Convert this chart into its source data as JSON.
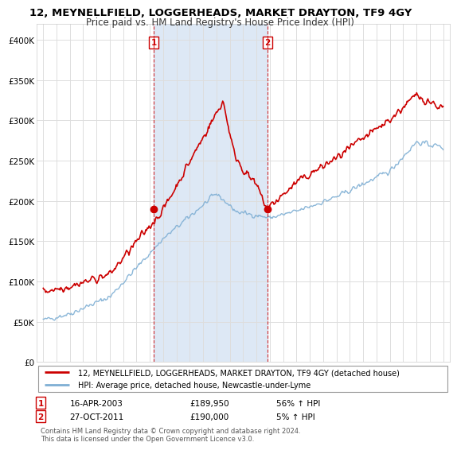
{
  "title": "12, MEYNELLFIELD, LOGGERHEADS, MARKET DRAYTON, TF9 4GY",
  "subtitle": "Price paid vs. HM Land Registry's House Price Index (HPI)",
  "ylim": [
    0,
    420000
  ],
  "yticks": [
    0,
    50000,
    100000,
    150000,
    200000,
    250000,
    300000,
    350000,
    400000
  ],
  "ytick_labels": [
    "£0",
    "£50K",
    "£100K",
    "£150K",
    "£200K",
    "£250K",
    "£300K",
    "£350K",
    "£400K"
  ],
  "xlim_left": 1994.5,
  "xlim_right": 2025.5,
  "sale1_x": 2003.29,
  "sale1_y": 189950,
  "sale2_x": 2011.82,
  "sale2_y": 190000,
  "background_color": "#ffffff",
  "plot_bg": "#ffffff",
  "shade_color": "#dde8f5",
  "red_color": "#cc0000",
  "blue_color": "#7fafd4",
  "legend_entry1": "12, MEYNELLFIELD, LOGGERHEADS, MARKET DRAYTON, TF9 4GY (detached house)",
  "legend_entry2": "HPI: Average price, detached house, Newcastle-under-Lyme",
  "table_row1": [
    "1",
    "16-APR-2003",
    "£189,950",
    "56% ↑ HPI"
  ],
  "table_row2": [
    "2",
    "27-OCT-2011",
    "£190,000",
    "5% ↑ HPI"
  ],
  "footer": "Contains HM Land Registry data © Crown copyright and database right 2024.\nThis data is licensed under the Open Government Licence v3.0.",
  "title_fontsize": 9.5,
  "subtitle_fontsize": 8.5
}
